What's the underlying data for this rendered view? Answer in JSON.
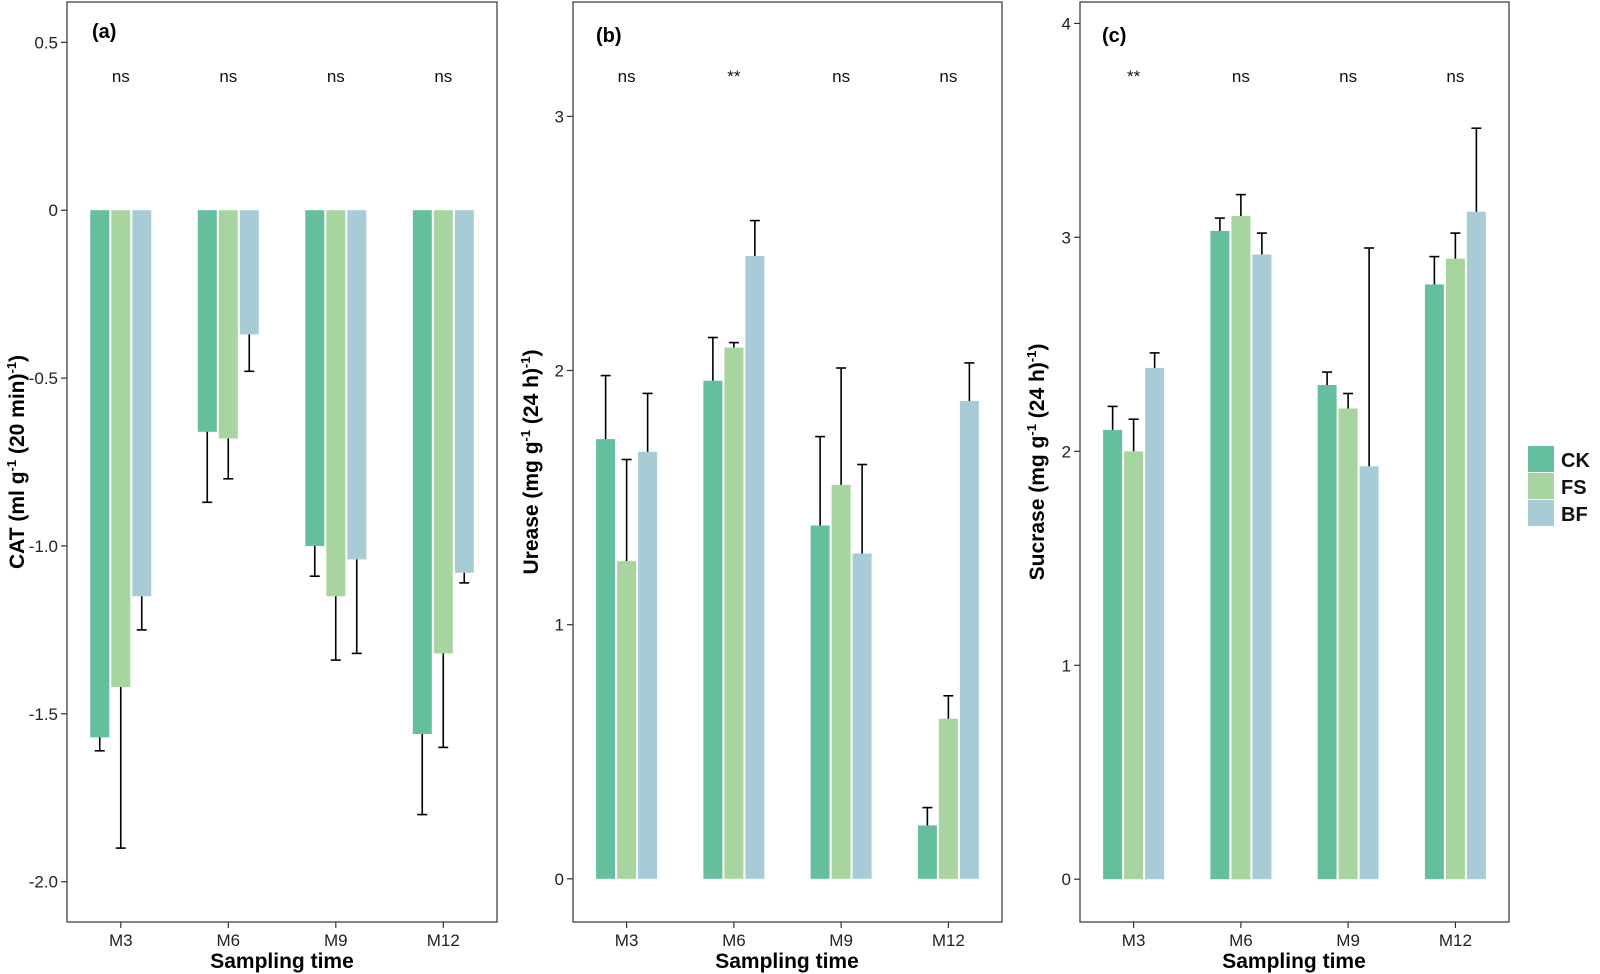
{
  "colors": {
    "CK": "#66bf9c",
    "FS": "#a8d4a0",
    "BF": "#a7ccd6",
    "frame": "#333333",
    "error_bar": "#000000"
  },
  "legend": {
    "placement": "right",
    "items": [
      "CK",
      "FS",
      "BF"
    ]
  },
  "chart_data": [
    {
      "type": "bar",
      "panel_tag": "(a)",
      "xlabel": "Sampling time",
      "ylabel_parts": [
        "CAT (ml g",
        "-1",
        " (20 min)",
        "-1",
        ")"
      ],
      "ylim": [
        -2.12,
        0.62
      ],
      "yticks": [
        0.5,
        0,
        -0.5,
        -1.0,
        -1.5,
        -2.0
      ],
      "ytick_labels": [
        "0.5",
        "0",
        "-0.5",
        "-1.0",
        "-1.5",
        "-2.0"
      ],
      "categories": [
        "M3",
        "M6",
        "M9",
        "M12"
      ],
      "significance": [
        "ns",
        "ns",
        "ns",
        "ns"
      ],
      "grid": false,
      "series": [
        {
          "name": "CK",
          "values": [
            -1.57,
            -0.66,
            -1.0,
            -1.56
          ],
          "errors": [
            0.04,
            0.21,
            0.09,
            0.24
          ]
        },
        {
          "name": "FS",
          "values": [
            -1.42,
            -0.68,
            -1.15,
            -1.32
          ],
          "errors": [
            0.48,
            0.12,
            0.19,
            0.28
          ]
        },
        {
          "name": "BF",
          "values": [
            -1.15,
            -0.37,
            -1.04,
            -1.08
          ],
          "errors": [
            0.1,
            0.11,
            0.28,
            0.03
          ]
        }
      ]
    },
    {
      "type": "bar",
      "panel_tag": "(b)",
      "xlabel": "Sampling time",
      "ylabel_parts": [
        "Urease (mg g",
        "-1",
        " (24 h)",
        "-1",
        ")"
      ],
      "ylim": [
        -0.17,
        3.45
      ],
      "yticks": [
        0,
        1,
        2,
        3
      ],
      "ytick_labels": [
        "0",
        "1",
        "2",
        "3"
      ],
      "categories": [
        "M3",
        "M6",
        "M9",
        "M12"
      ],
      "significance": [
        "ns",
        "**",
        "ns",
        "ns"
      ],
      "grid": false,
      "series": [
        {
          "name": "CK",
          "values": [
            1.73,
            1.96,
            1.39,
            0.21
          ],
          "errors": [
            0.25,
            0.17,
            0.35,
            0.07
          ]
        },
        {
          "name": "FS",
          "values": [
            1.25,
            2.09,
            1.55,
            0.63
          ],
          "errors": [
            0.4,
            0.02,
            0.46,
            0.09
          ]
        },
        {
          "name": "BF",
          "values": [
            1.68,
            2.45,
            1.28,
            1.88
          ],
          "errors": [
            0.23,
            0.14,
            0.35,
            0.15
          ]
        }
      ]
    },
    {
      "type": "bar",
      "panel_tag": "(c)",
      "xlabel": "Sampling time",
      "ylabel_parts": [
        "Sucrase (mg g",
        "-1",
        " (24 h)",
        "-1",
        ")"
      ],
      "ylim": [
        -0.2,
        4.1
      ],
      "yticks": [
        0,
        1,
        2,
        3,
        4
      ],
      "ytick_labels": [
        "0",
        "1",
        "2",
        "3",
        "4"
      ],
      "categories": [
        "M3",
        "M6",
        "M9",
        "M12"
      ],
      "significance": [
        "**",
        "ns",
        "ns",
        "ns"
      ],
      "grid": false,
      "series": [
        {
          "name": "CK",
          "values": [
            2.1,
            3.03,
            2.31,
            2.78
          ],
          "errors": [
            0.11,
            0.06,
            0.06,
            0.13
          ]
        },
        {
          "name": "FS",
          "values": [
            2.0,
            3.1,
            2.2,
            2.9
          ],
          "errors": [
            0.15,
            0.1,
            0.07,
            0.12
          ]
        },
        {
          "name": "BF",
          "values": [
            2.39,
            2.92,
            1.93,
            3.12
          ],
          "errors": [
            0.07,
            0.1,
            1.02,
            0.39
          ]
        }
      ]
    }
  ]
}
